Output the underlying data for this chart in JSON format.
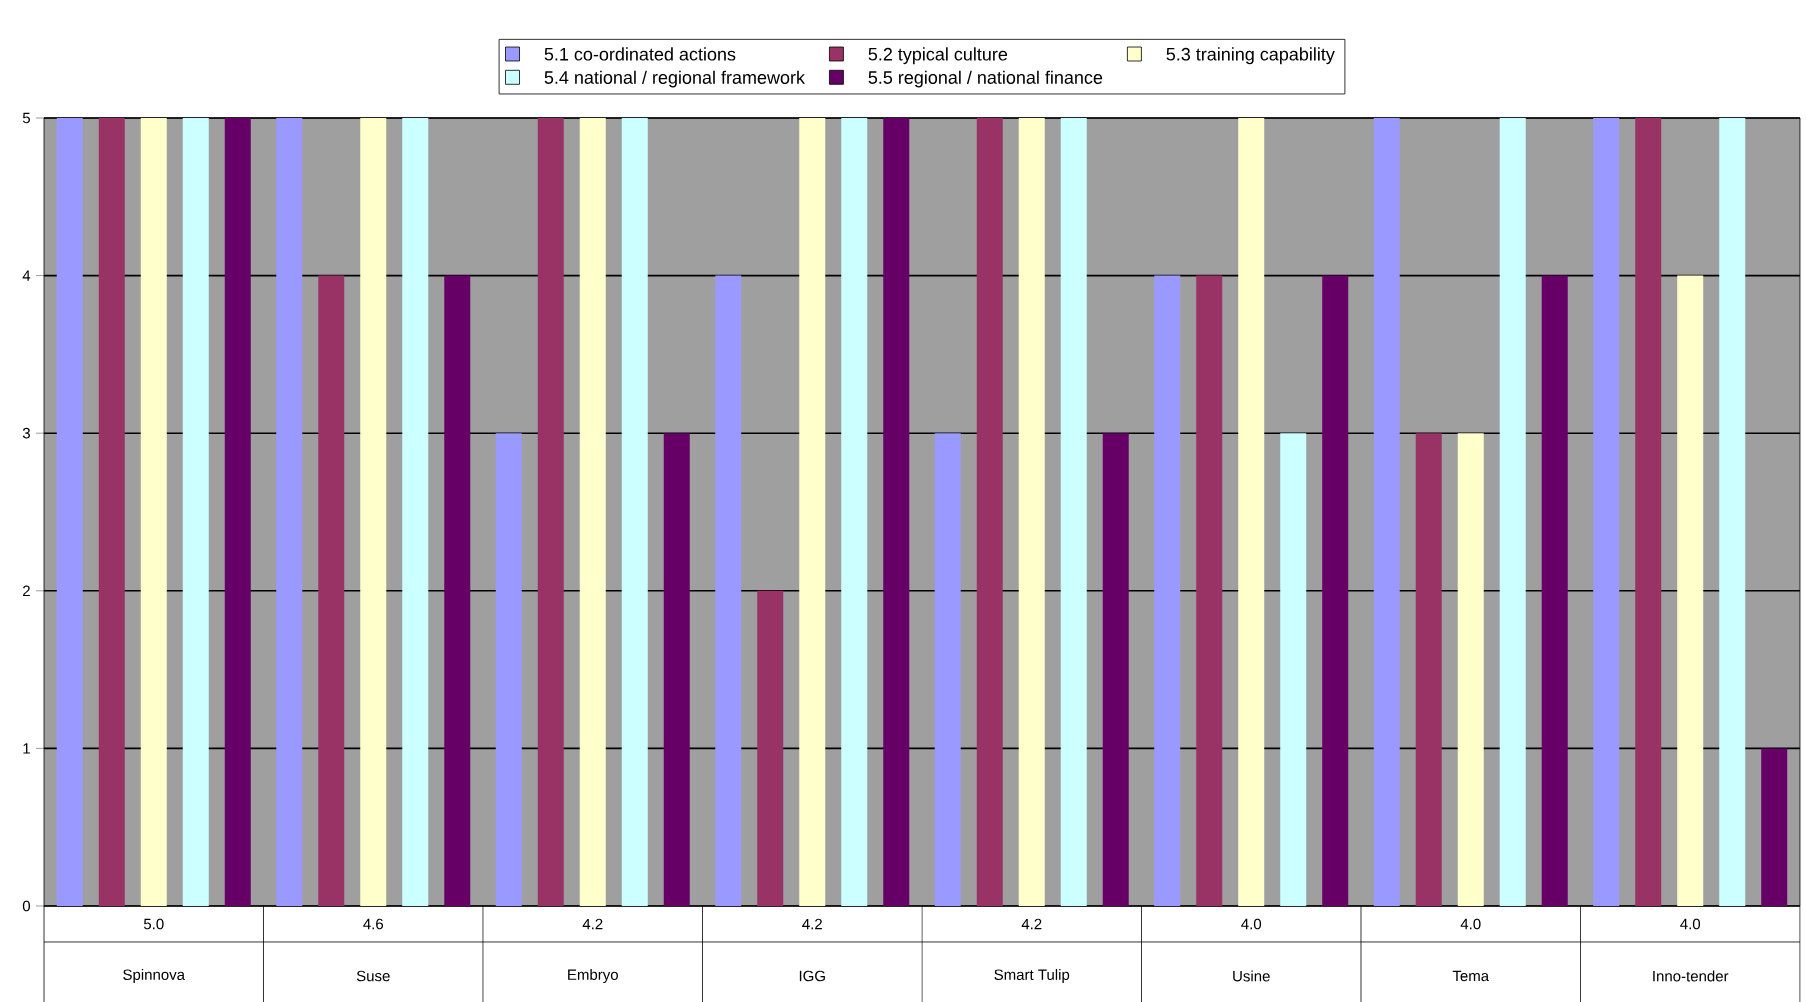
{
  "chart_data": {
    "type": "bar",
    "categories": [
      "Spinnova",
      "Suse",
      "Embryo",
      "IGG",
      "Smart Tulip",
      "Usine",
      "Tema",
      "Inno-tender"
    ],
    "series": [
      {
        "name": "5.1 co-ordinated actions",
        "color": "#9999ff",
        "values": [
          5,
          5,
          3,
          4,
          3,
          4,
          5,
          5
        ]
      },
      {
        "name": "5.2 typical culture",
        "color": "#993366",
        "values": [
          5,
          4,
          5,
          2,
          5,
          4,
          3,
          5
        ]
      },
      {
        "name": "5.3 training capability",
        "color": "#ffffcc",
        "values": [
          5,
          5,
          5,
          5,
          5,
          5,
          3,
          4
        ]
      },
      {
        "name": "5.4 national / regional framework",
        "color": "#ccffff",
        "values": [
          5,
          5,
          5,
          5,
          5,
          3,
          5,
          5
        ]
      },
      {
        "name": "5.5 regional / national finance",
        "color": "#660066",
        "values": [
          5,
          4,
          3,
          5,
          3,
          4,
          4,
          1
        ]
      }
    ],
    "annotations": [
      "5.0",
      "4.6",
      "4.2",
      "4.2",
      "4.2",
      "4.0",
      "4.0",
      "4.0"
    ],
    "ylim": [
      0,
      5
    ],
    "yticks": [
      0,
      1,
      2,
      3,
      4,
      5
    ],
    "grid": "y",
    "legend": "top"
  }
}
